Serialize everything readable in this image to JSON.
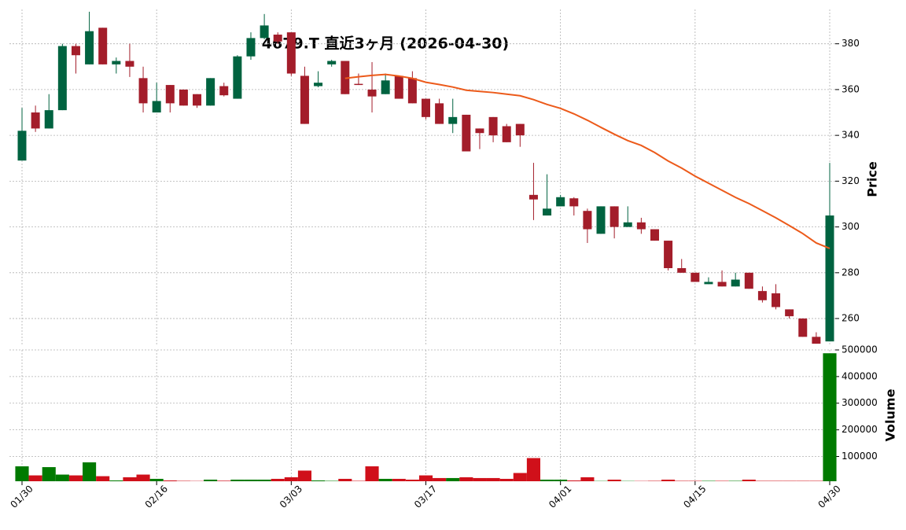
{
  "chart_data": {
    "type": "candlestick",
    "title": "4679.T  直近3ヶ月  (2026-04-30)",
    "categories": [
      "01/30",
      null,
      null,
      null,
      null,
      null,
      null,
      null,
      null,
      null,
      "02/16",
      null,
      null,
      null,
      null,
      null,
      null,
      null,
      null,
      null,
      "03/03",
      null,
      null,
      null,
      null,
      null,
      null,
      null,
      null,
      null,
      "03/17",
      null,
      null,
      null,
      null,
      null,
      null,
      null,
      null,
      null,
      "04/01",
      null,
      null,
      null,
      null,
      null,
      null,
      null,
      null,
      null,
      "04/15",
      null,
      null,
      null,
      null,
      null,
      null,
      null,
      null,
      null,
      "04/30"
    ],
    "open": [
      329,
      350,
      343,
      351,
      379,
      371,
      387,
      371,
      372.5,
      365,
      350,
      362,
      360,
      358,
      353,
      361.5,
      356,
      374.5,
      382.5,
      384,
      385,
      366,
      361.5,
      371,
      372.5,
      362.5,
      360,
      358,
      366,
      365,
      356,
      354,
      345,
      349,
      343,
      348,
      344,
      345,
      314,
      305,
      309,
      312.5,
      307,
      297,
      309,
      300,
      302,
      299,
      294,
      282,
      280,
      275,
      276,
      274,
      280,
      272,
      271,
      264,
      260,
      252,
      250
    ],
    "high": [
      352,
      353,
      358,
      380,
      380,
      394,
      387,
      374,
      380,
      370,
      363,
      362,
      360,
      358,
      365,
      363,
      375,
      385,
      393,
      385,
      385,
      370,
      368,
      373,
      372.5,
      367,
      372,
      367,
      366,
      368,
      356,
      356,
      356,
      349,
      343,
      348,
      345,
      345,
      328,
      323,
      314,
      313,
      308,
      309,
      309,
      309,
      304,
      299,
      294,
      286,
      280,
      278,
      281,
      280,
      280,
      274,
      275,
      264,
      260,
      254,
      328
    ],
    "low": [
      329,
      341.5,
      343,
      351,
      367,
      371,
      371,
      367,
      365.5,
      350,
      350,
      350,
      353,
      352,
      353,
      357,
      356,
      373,
      382,
      380,
      366,
      345,
      361,
      370,
      358,
      362,
      350,
      358,
      356,
      354,
      347,
      345,
      341,
      333,
      334,
      337,
      337,
      335,
      303,
      305,
      309,
      305,
      293,
      297,
      295,
      300,
      297,
      294,
      281,
      280,
      276,
      275,
      274,
      274,
      273,
      267,
      264,
      260,
      252,
      249,
      250
    ],
    "close": [
      342,
      343,
      351,
      379,
      375,
      385.5,
      371,
      372.5,
      370,
      354,
      355,
      354,
      353,
      353,
      365,
      357.5,
      374.5,
      382.5,
      388,
      381,
      367,
      345,
      363,
      372.5,
      358,
      362,
      357,
      364,
      356,
      354,
      348,
      345,
      348,
      333,
      341,
      340,
      337,
      340,
      312,
      308,
      313,
      309,
      299,
      309,
      300,
      302,
      299,
      294,
      282,
      280,
      276,
      276,
      274,
      277,
      273,
      268,
      265,
      261,
      252,
      249,
      305
    ],
    "volume": [
      63000,
      29000,
      60000,
      32000,
      29000,
      78000,
      26000,
      10000,
      22000,
      32000,
      16000,
      10000,
      8500,
      8000,
      13000,
      9000,
      13000,
      13000,
      13000,
      16000,
      22000,
      47000,
      10000,
      8500,
      16000,
      8500,
      63000,
      16000,
      16000,
      13000,
      29000,
      19000,
      19000,
      22000,
      19000,
      19000,
      16000,
      38000,
      94000,
      13000,
      13000,
      10000,
      22000,
      8000,
      13000,
      8000,
      8000,
      8500,
      13000,
      8500,
      8500,
      8500,
      8500,
      8500,
      13000,
      8500,
      8500,
      8500,
      8500,
      8500,
      487500
    ],
    "ma": {
      "color": "#ec5a1a",
      "values": [
        null,
        null,
        null,
        null,
        null,
        null,
        null,
        null,
        null,
        null,
        null,
        null,
        null,
        null,
        null,
        null,
        null,
        null,
        null,
        null,
        null,
        null,
        null,
        null,
        364.9,
        365.6,
        366.2,
        366.6,
        365.9,
        364.9,
        363.2,
        362.2,
        361.1,
        359.7,
        359.2,
        358.7,
        358.0,
        357.3,
        355.6,
        353.5,
        351.8,
        349.4,
        346.6,
        343.5,
        340.5,
        337.7,
        335.6,
        332.5,
        328.8,
        325.7,
        322.2,
        319.1,
        316.0,
        312.9,
        310.2,
        307.1,
        304.0,
        300.6,
        297.1,
        293.0,
        290.6
      ]
    },
    "up_color": "#006340",
    "down_color": "#a31d2a",
    "volume_up_color": "#007a00",
    "volume_down_color": "#d0101a",
    "ylim": [
      248,
      395
    ],
    "yticks": [
      260,
      280,
      300,
      320,
      340,
      360,
      380
    ],
    "y_label": "Price",
    "volume_lim": [
      7000,
      500000
    ],
    "volume_ticks": [
      100000,
      200000,
      300000,
      400000,
      500000
    ],
    "volume_label": "Volume",
    "grid": true
  }
}
